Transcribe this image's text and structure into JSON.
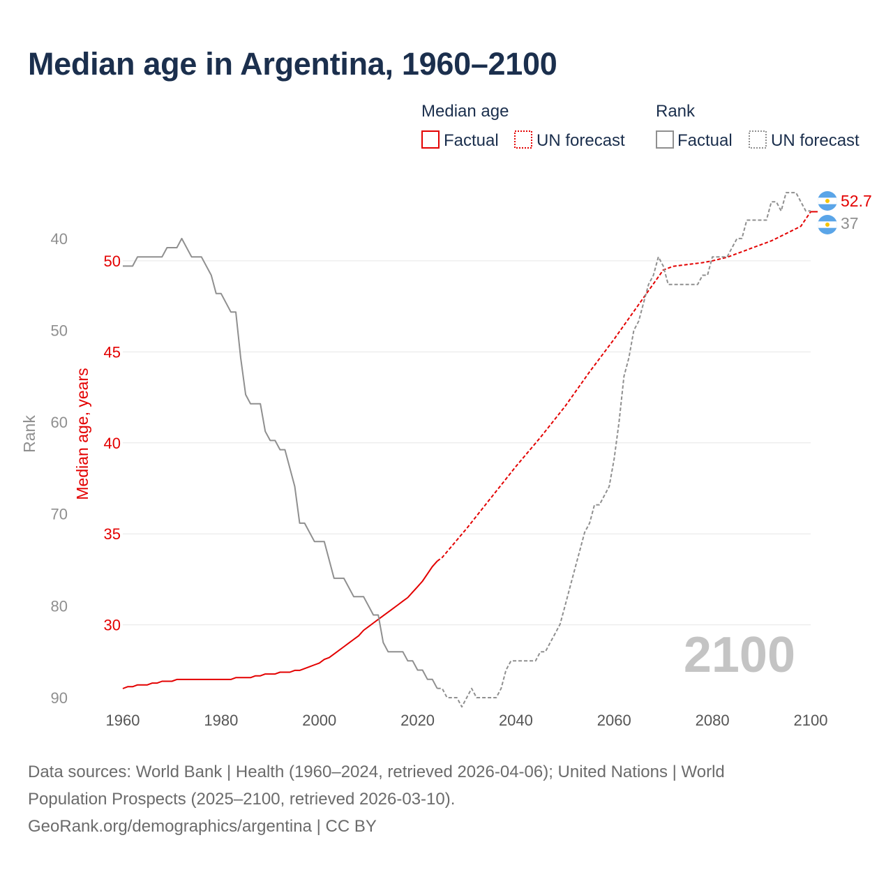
{
  "title": "Median age in Argentina, 1960–2100",
  "legend": {
    "median_age_heading": "Median age",
    "rank_heading": "Rank",
    "factual": "Factual",
    "forecast": "UN forecast"
  },
  "colors": {
    "median_age": "#e30000",
    "rank": "#8f8f8f",
    "title": "#1b2f4d",
    "flag_blue": "#5aa5e8",
    "flag_sun": "#f5c400"
  },
  "chart_data": {
    "type": "line",
    "title": "Median age in Argentina, 1960–2100",
    "xlabel": "",
    "ylabel_left_rank": "Rank",
    "ylabel_median": "Median age, years",
    "xlim": [
      1960,
      2100
    ],
    "x_ticks": [
      1960,
      1980,
      2000,
      2020,
      2040,
      2060,
      2080,
      2100
    ],
    "median_ylim": [
      26,
      53.6
    ],
    "median_ticks": [
      30,
      35,
      40,
      45,
      50
    ],
    "rank_ylim": [
      90,
      35.3
    ],
    "rank_ticks": [
      40,
      50,
      60,
      70,
      80,
      90
    ],
    "factual_range": [
      1960,
      2024
    ],
    "forecast_range": [
      2024,
      2100
    ],
    "current_year_label": "2100",
    "series": [
      {
        "name": "Median age",
        "axis": "median",
        "points": [
          [
            1960,
            26.5
          ],
          [
            1961,
            26.6
          ],
          [
            1962,
            26.6
          ],
          [
            1963,
            26.7
          ],
          [
            1965,
            26.7
          ],
          [
            1966,
            26.8
          ],
          [
            1967,
            26.8
          ],
          [
            1968,
            26.9
          ],
          [
            1970,
            26.9
          ],
          [
            1971,
            27.0
          ],
          [
            1975,
            27.0
          ],
          [
            1980,
            27.0
          ],
          [
            1982,
            27.0
          ],
          [
            1983,
            27.1
          ],
          [
            1986,
            27.1
          ],
          [
            1987,
            27.2
          ],
          [
            1988,
            27.2
          ],
          [
            1989,
            27.3
          ],
          [
            1991,
            27.3
          ],
          [
            1992,
            27.4
          ],
          [
            1994,
            27.4
          ],
          [
            1995,
            27.5
          ],
          [
            1996,
            27.5
          ],
          [
            1997,
            27.6
          ],
          [
            1998,
            27.7
          ],
          [
            1999,
            27.8
          ],
          [
            2000,
            27.9
          ],
          [
            2001,
            28.1
          ],
          [
            2002,
            28.2
          ],
          [
            2003,
            28.4
          ],
          [
            2004,
            28.6
          ],
          [
            2005,
            28.8
          ],
          [
            2006,
            29.0
          ],
          [
            2007,
            29.2
          ],
          [
            2008,
            29.4
          ],
          [
            2009,
            29.7
          ],
          [
            2010,
            29.9
          ],
          [
            2011,
            30.1
          ],
          [
            2012,
            30.3
          ],
          [
            2013,
            30.5
          ],
          [
            2014,
            30.7
          ],
          [
            2015,
            30.9
          ],
          [
            2016,
            31.1
          ],
          [
            2017,
            31.3
          ],
          [
            2018,
            31.5
          ],
          [
            2019,
            31.8
          ],
          [
            2020,
            32.1
          ],
          [
            2021,
            32.4
          ],
          [
            2022,
            32.8
          ],
          [
            2023,
            33.2
          ],
          [
            2024,
            33.5
          ],
          [
            2025,
            33.7
          ],
          [
            2030,
            35.3
          ],
          [
            2035,
            37.0
          ],
          [
            2040,
            38.7
          ],
          [
            2045,
            40.3
          ],
          [
            2050,
            42.0
          ],
          [
            2055,
            43.9
          ],
          [
            2060,
            45.7
          ],
          [
            2065,
            47.6
          ],
          [
            2070,
            49.5
          ],
          [
            2072,
            49.7
          ],
          [
            2075,
            49.8
          ],
          [
            2078,
            49.9
          ],
          [
            2080,
            50.0
          ],
          [
            2083,
            50.2
          ],
          [
            2086,
            50.5
          ],
          [
            2089,
            50.8
          ],
          [
            2092,
            51.1
          ],
          [
            2095,
            51.5
          ],
          [
            2098,
            51.9
          ],
          [
            2100,
            52.7
          ]
        ]
      },
      {
        "name": "Rank",
        "axis": "rank",
        "points": [
          [
            1960,
            43
          ],
          [
            1962,
            43
          ],
          [
            1963,
            42
          ],
          [
            1968,
            42
          ],
          [
            1969,
            41
          ],
          [
            1971,
            41
          ],
          [
            1972,
            40
          ],
          [
            1974,
            42
          ],
          [
            1976,
            42
          ],
          [
            1978,
            44
          ],
          [
            1979,
            46
          ],
          [
            1980,
            46
          ],
          [
            1982,
            48
          ],
          [
            1983,
            48
          ],
          [
            1984,
            53
          ],
          [
            1985,
            57
          ],
          [
            1986,
            58
          ],
          [
            1988,
            58
          ],
          [
            1989,
            61
          ],
          [
            1990,
            62
          ],
          [
            1991,
            62
          ],
          [
            1992,
            63
          ],
          [
            1993,
            63
          ],
          [
            1995,
            67
          ],
          [
            1996,
            71
          ],
          [
            1997,
            71
          ],
          [
            1999,
            73
          ],
          [
            2001,
            73
          ],
          [
            2003,
            77
          ],
          [
            2005,
            77
          ],
          [
            2007,
            79
          ],
          [
            2009,
            79
          ],
          [
            2011,
            81
          ],
          [
            2012,
            81
          ],
          [
            2013,
            84
          ],
          [
            2014,
            85
          ],
          [
            2017,
            85
          ],
          [
            2018,
            86
          ],
          [
            2019,
            86
          ],
          [
            2020,
            87
          ],
          [
            2021,
            87
          ],
          [
            2022,
            88
          ],
          [
            2023,
            88
          ],
          [
            2024,
            89
          ],
          [
            2025,
            89
          ],
          [
            2026,
            90
          ],
          [
            2028,
            90
          ],
          [
            2029,
            91
          ],
          [
            2030,
            90
          ],
          [
            2031,
            89
          ],
          [
            2032,
            90
          ],
          [
            2036,
            90
          ],
          [
            2037,
            89
          ],
          [
            2038,
            87
          ],
          [
            2039,
            86
          ],
          [
            2042,
            86
          ],
          [
            2043,
            86
          ],
          [
            2044,
            86
          ],
          [
            2045,
            85
          ],
          [
            2046,
            85
          ],
          [
            2047,
            84
          ],
          [
            2048,
            83
          ],
          [
            2049,
            82
          ],
          [
            2050,
            80
          ],
          [
            2051,
            78
          ],
          [
            2052,
            76
          ],
          [
            2053,
            74
          ],
          [
            2054,
            72
          ],
          [
            2055,
            71
          ],
          [
            2056,
            69
          ],
          [
            2057,
            69
          ],
          [
            2058,
            68
          ],
          [
            2059,
            67
          ],
          [
            2060,
            64
          ],
          [
            2061,
            60
          ],
          [
            2062,
            55
          ],
          [
            2063,
            53
          ],
          [
            2064,
            50
          ],
          [
            2065,
            49
          ],
          [
            2066,
            47
          ],
          [
            2067,
            45
          ],
          [
            2068,
            44
          ],
          [
            2069,
            42
          ],
          [
            2070,
            43
          ],
          [
            2071,
            45
          ],
          [
            2072,
            45
          ],
          [
            2077,
            45
          ],
          [
            2078,
            44
          ],
          [
            2079,
            44
          ],
          [
            2080,
            42
          ],
          [
            2083,
            42
          ],
          [
            2084,
            41
          ],
          [
            2085,
            40
          ],
          [
            2086,
            40
          ],
          [
            2087,
            38
          ],
          [
            2088,
            38
          ],
          [
            2091,
            38
          ],
          [
            2092,
            36
          ],
          [
            2093,
            36
          ],
          [
            2094,
            37
          ],
          [
            2095,
            35
          ],
          [
            2097,
            35
          ],
          [
            2098,
            36
          ],
          [
            2099,
            37
          ],
          [
            2100,
            37
          ]
        ]
      }
    ],
    "end_labels": {
      "median": "52.7",
      "rank": "37"
    }
  },
  "footer": {
    "line1": "Data sources: World Bank | Health (1960–2024, retrieved 2026-04-06); United Nations | World",
    "line2": "Population Prospects (2025–2100, retrieved 2026-03-10).",
    "line3": "GeoRank.org/demographics/argentina | CC BY"
  }
}
